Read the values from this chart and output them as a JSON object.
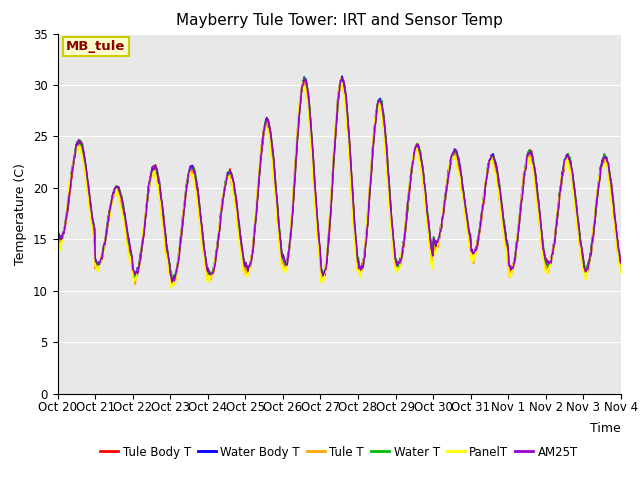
{
  "title": "Mayberry Tule Tower: IRT and Sensor Temp",
  "xlabel": "Time",
  "ylabel": "Temperature (C)",
  "ylim": [
    0,
    35
  ],
  "yticks": [
    0,
    5,
    10,
    15,
    20,
    25,
    30,
    35
  ],
  "annotation_text": "MB_tule",
  "annotation_color": "#8B0000",
  "annotation_bg": "#FFFFCC",
  "annotation_border": "#CCCC00",
  "plot_bg": "#E8E8E8",
  "legend": [
    "Tule Body T",
    "Water Body T",
    "Tule T",
    "Water T",
    "PanelT",
    "AM25T"
  ],
  "line_colors": [
    "#FF0000",
    "#0000FF",
    "#FFA500",
    "#00BB00",
    "#FFFF00",
    "#9900CC"
  ],
  "line_widths": [
    1.2,
    1.2,
    1.2,
    1.2,
    1.2,
    1.2
  ],
  "xtick_labels": [
    "Oct 20",
    "Oct 21",
    "Oct 22",
    "Oct 23",
    "Oct 24",
    "Oct 25",
    "Oct 26",
    "Oct 27",
    "Oct 28",
    "Oct 29",
    "Oct 30",
    "Oct 31",
    "Nov 1",
    "Nov 2",
    "Nov 3",
    "Nov 4"
  ],
  "num_days": 15,
  "points_per_day": 48,
  "title_fontsize": 11,
  "axis_fontsize": 9,
  "tick_fontsize": 8.5,
  "day_peaks": [
    24.5,
    20.0,
    22.0,
    22.0,
    21.5,
    26.5,
    30.5,
    30.5,
    28.5,
    24.0,
    23.5,
    23.0,
    23.5,
    23.0,
    23.0
  ],
  "day_troughs": [
    15.0,
    12.5,
    11.5,
    11.0,
    11.5,
    12.0,
    12.5,
    11.5,
    12.0,
    12.5,
    14.5,
    13.5,
    12.0,
    12.5,
    12.0
  ]
}
